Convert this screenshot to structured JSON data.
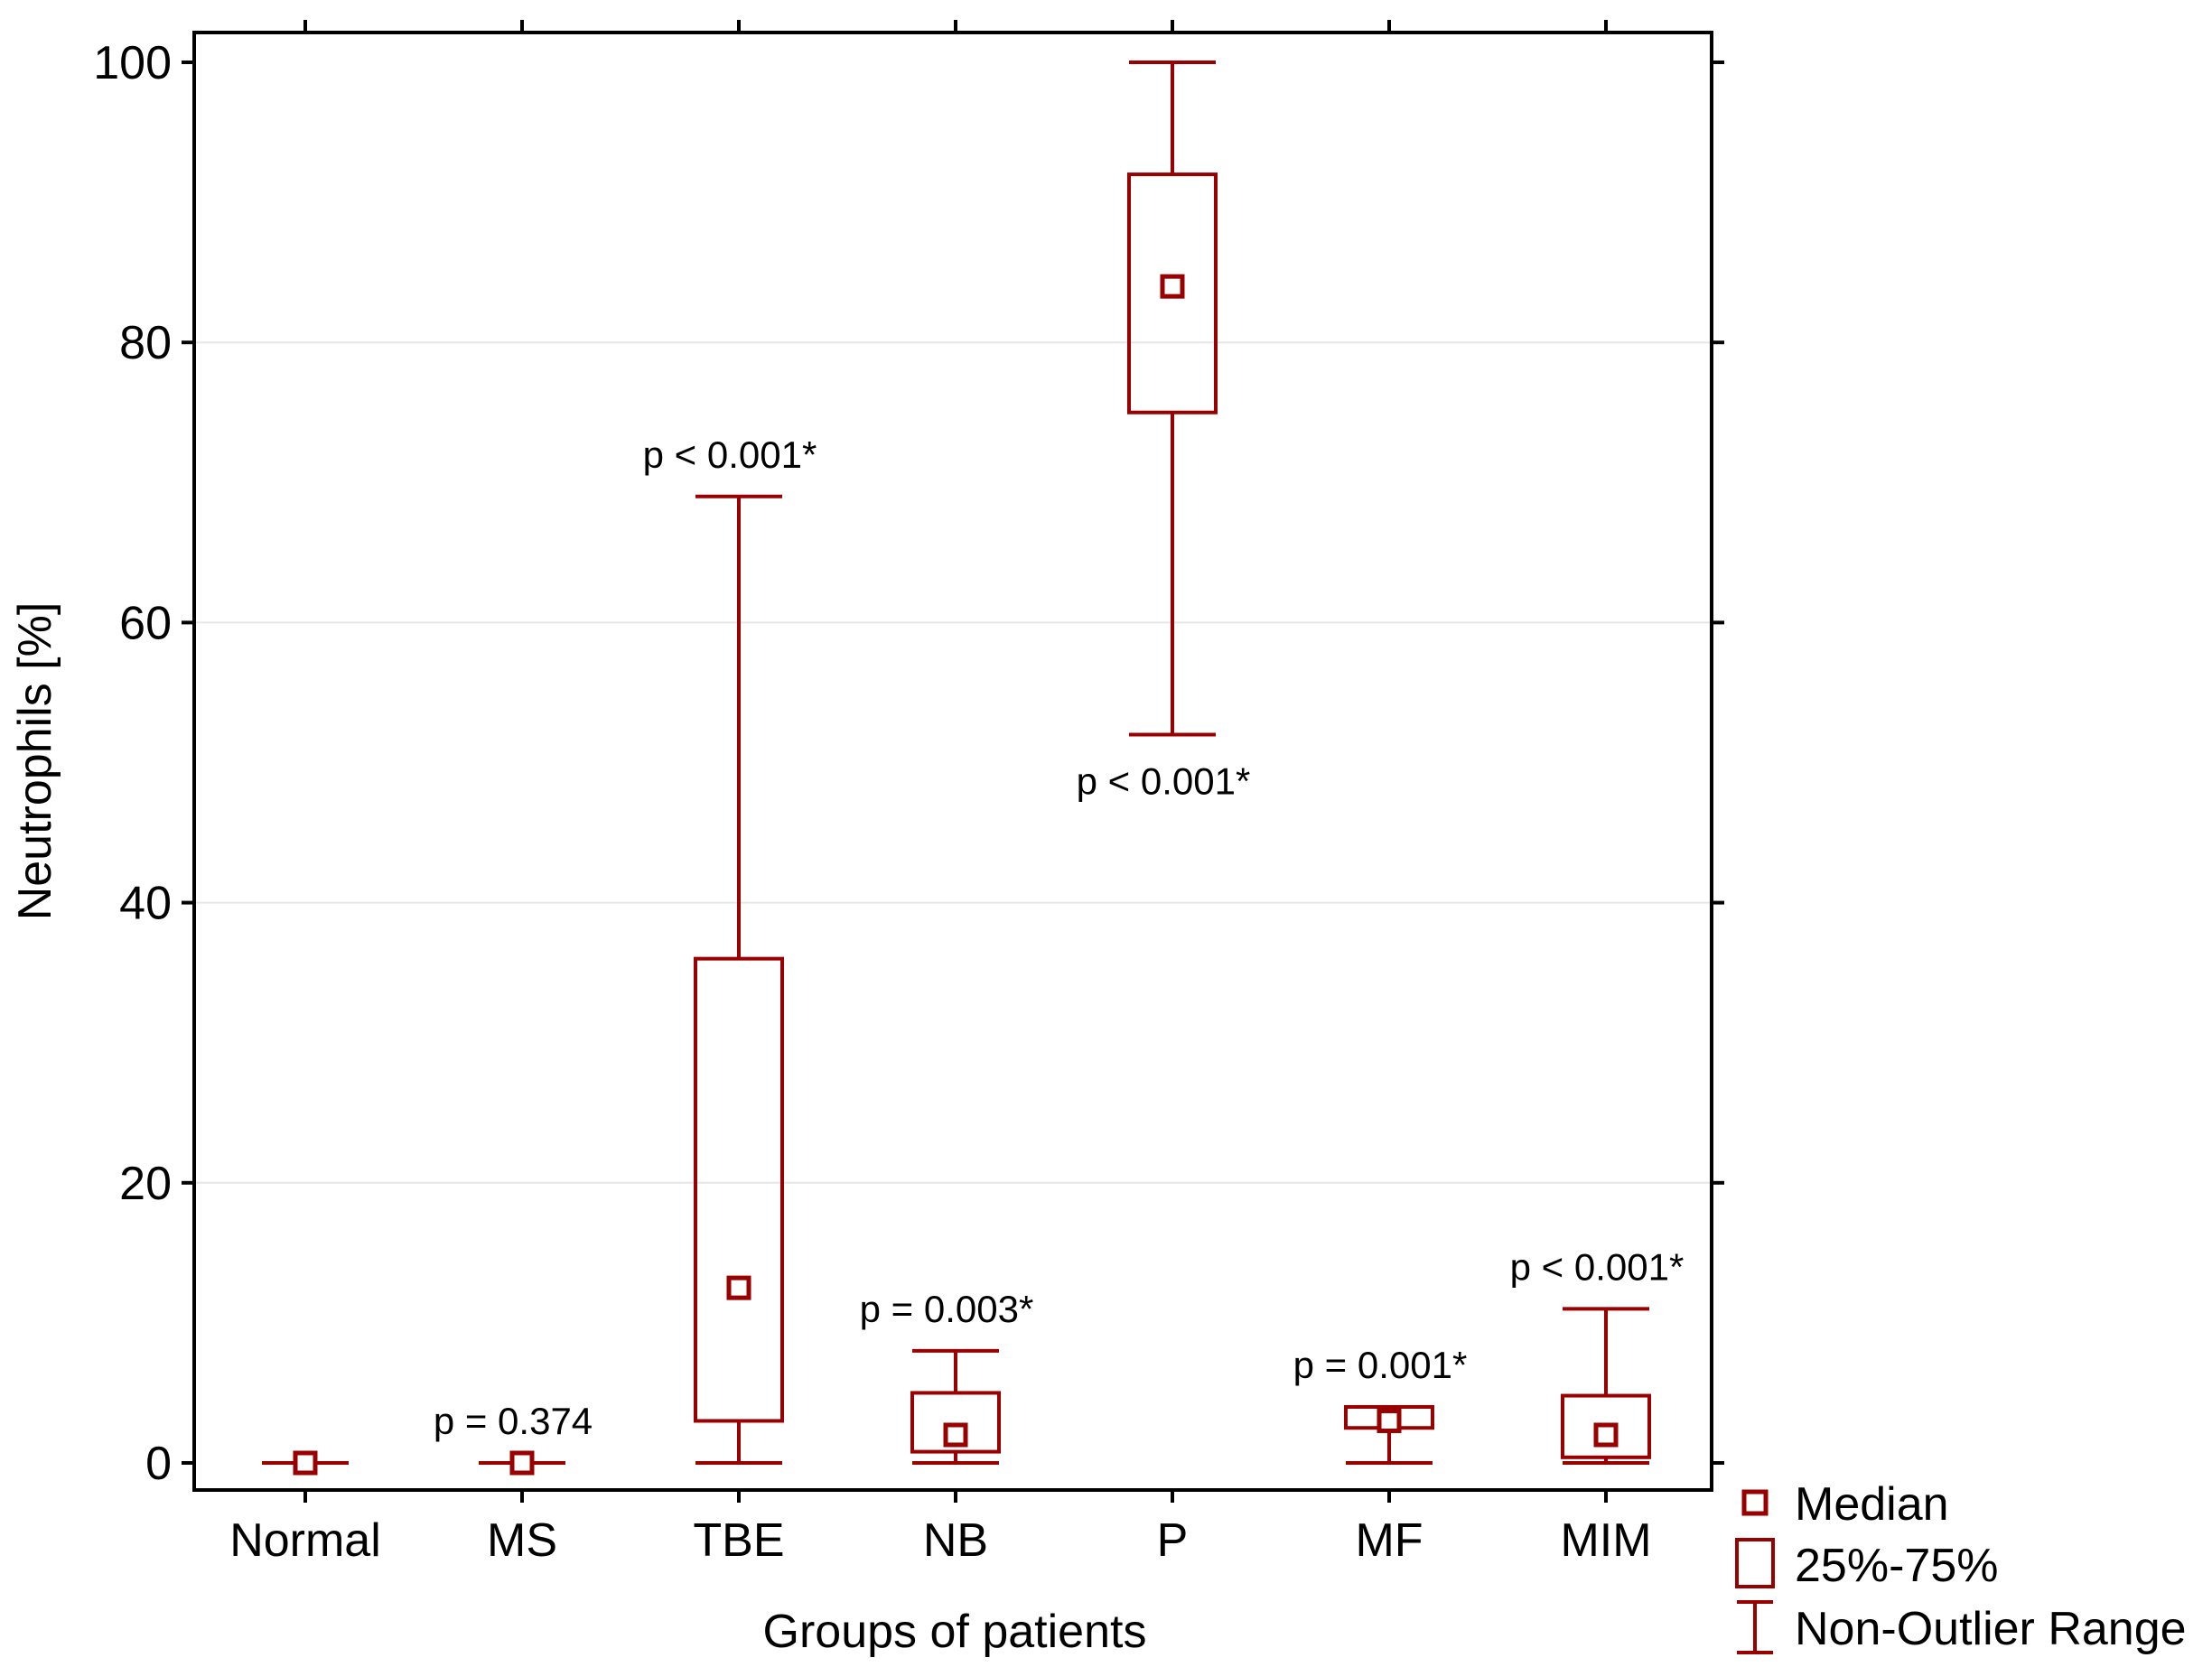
{
  "chart_data": {
    "type": "boxplot",
    "title": "",
    "xlabel": "Groups of patients",
    "ylabel": "Neutrophils [%]",
    "ylim": [
      -2,
      102
    ],
    "yticks": [
      0,
      20,
      40,
      60,
      80,
      100
    ],
    "grid": true,
    "colors": {
      "box": "#990000",
      "grid": "#e6e6e6",
      "axis": "#000000"
    },
    "categories": [
      "Normal",
      "MS",
      "TBE",
      "NB",
      "P",
      "MF",
      "MIM"
    ],
    "groups": [
      {
        "name": "Normal",
        "min": 0,
        "q1": 0,
        "median": 0,
        "q3": 0,
        "max": 0,
        "pvalue": ""
      },
      {
        "name": "MS",
        "min": 0,
        "q1": 0,
        "median": 0,
        "q3": 0,
        "max": 0,
        "pvalue": "p = 0.374"
      },
      {
        "name": "TBE",
        "min": 0,
        "q1": 3,
        "median": 12.5,
        "q3": 36,
        "max": 69,
        "pvalue": "p < 0.001*"
      },
      {
        "name": "NB",
        "min": 0,
        "q1": 0.8,
        "median": 2,
        "q3": 5,
        "max": 8,
        "pvalue": "p = 0.003*"
      },
      {
        "name": "P",
        "min": 52,
        "q1": 75,
        "median": 84,
        "q3": 92,
        "max": 100,
        "pvalue": "p < 0.001*"
      },
      {
        "name": "MF",
        "min": 0,
        "q1": 2.5,
        "median": 3,
        "q3": 4,
        "max": 4,
        "pvalue": "p = 0.001*"
      },
      {
        "name": "MIM",
        "min": 0,
        "q1": 0.4,
        "median": 2,
        "q3": 4.8,
        "max": 11,
        "pvalue": "p < 0.001*"
      }
    ],
    "legend": {
      "position": "bottom-right",
      "entries": [
        "Median",
        "25%-75%",
        "Non-Outlier Range"
      ]
    }
  }
}
